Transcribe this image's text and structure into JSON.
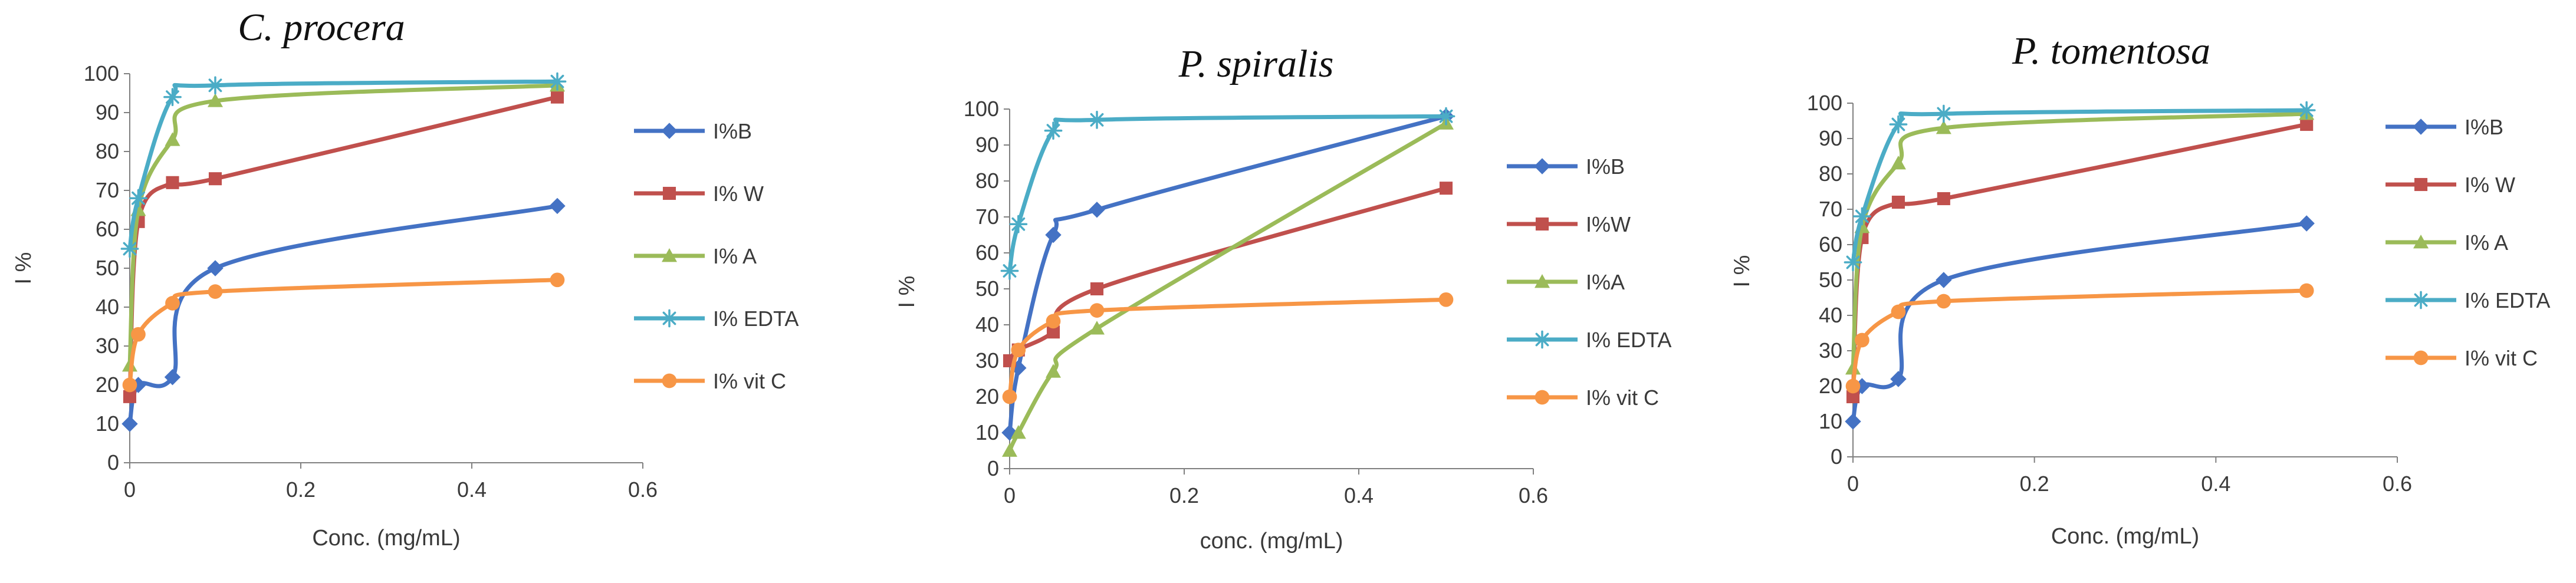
{
  "chart_data": [
    {
      "type": "line",
      "title": "C. procera",
      "xlabel": "Conc. (mg/mL)",
      "ylabel": "I %",
      "xlim": [
        0,
        0.6
      ],
      "ylim": [
        0,
        100
      ],
      "xticks": [
        0,
        0.2,
        0.4,
        0.6
      ],
      "xtick_labels": [
        "0",
        "0.2",
        "0.4",
        "0.6"
      ],
      "yticks": [
        0,
        10,
        20,
        30,
        40,
        50,
        60,
        70,
        80,
        90,
        100
      ],
      "ytick_labels": [
        "0",
        "10",
        "20",
        "30",
        "40",
        "50",
        "60",
        "70",
        "80",
        "90",
        "100"
      ],
      "legend_position": "right",
      "series": [
        {
          "name": "I%B",
          "marker": "diamond",
          "color": "#4472c4",
          "x": [
            0,
            0.01,
            0.05,
            0.1,
            0.5
          ],
          "y": [
            10,
            20,
            22,
            50,
            66
          ]
        },
        {
          "name": "I% W",
          "marker": "square",
          "color": "#c0504d",
          "x": [
            0,
            0.01,
            0.05,
            0.1,
            0.5
          ],
          "y": [
            17,
            62,
            72,
            73,
            94
          ]
        },
        {
          "name": "I% A",
          "marker": "triangle",
          "color": "#9bbb59",
          "x": [
            0,
            0.01,
            0.05,
            0.1,
            0.5
          ],
          "y": [
            25,
            65,
            83,
            93,
            97
          ]
        },
        {
          "name": "I% EDTA",
          "marker": "asterisk",
          "color": "#4bacc6",
          "x": [
            0,
            0.01,
            0.05,
            0.1,
            0.5
          ],
          "y": [
            55,
            68,
            94,
            97,
            98
          ]
        },
        {
          "name": "I% vit C",
          "marker": "circle",
          "color": "#f79646",
          "x": [
            0,
            0.01,
            0.05,
            0.1,
            0.5
          ],
          "y": [
            20,
            33,
            41,
            44,
            47
          ]
        }
      ]
    },
    {
      "type": "line",
      "title": "P. spiralis",
      "xlabel": "conc. (mg/mL)",
      "ylabel": "I %",
      "xlim": [
        0,
        0.6
      ],
      "ylim": [
        0,
        100
      ],
      "xticks": [
        0,
        0.2,
        0.4,
        0.6
      ],
      "xtick_labels": [
        "0",
        "0.2",
        "0.4",
        "0.6"
      ],
      "yticks": [
        0,
        10,
        20,
        30,
        40,
        50,
        60,
        70,
        80,
        90,
        100
      ],
      "ytick_labels": [
        "0",
        "10",
        "20",
        "30",
        "40",
        "50",
        "60",
        "70",
        "80",
        "90",
        "100"
      ],
      "legend_position": "right",
      "series": [
        {
          "name": "I%B",
          "marker": "diamond",
          "color": "#4472c4",
          "x": [
            0,
            0.01,
            0.05,
            0.1,
            0.5
          ],
          "y": [
            10,
            28,
            65,
            72,
            98
          ]
        },
        {
          "name": "I%W",
          "marker": "square",
          "color": "#c0504d",
          "x": [
            0,
            0.01,
            0.05,
            0.1,
            0.5
          ],
          "y": [
            30,
            33,
            38,
            50,
            78
          ]
        },
        {
          "name": "I%A",
          "marker": "triangle",
          "color": "#9bbb59",
          "x": [
            0,
            0.01,
            0.05,
            0.1,
            0.5
          ],
          "y": [
            5,
            10,
            27,
            39,
            96
          ]
        },
        {
          "name": "I% EDTA",
          "marker": "asterisk",
          "color": "#4bacc6",
          "x": [
            0,
            0.01,
            0.05,
            0.1,
            0.5
          ],
          "y": [
            55,
            68,
            94,
            97,
            98
          ]
        },
        {
          "name": "I% vit C",
          "marker": "circle",
          "color": "#f79646",
          "x": [
            0,
            0.01,
            0.05,
            0.1,
            0.5
          ],
          "y": [
            20,
            33,
            41,
            44,
            47
          ]
        }
      ]
    },
    {
      "type": "line",
      "title": "P. tomentosa",
      "xlabel": "Conc. (mg/mL)",
      "ylabel": "I %",
      "xlim": [
        0,
        0.6
      ],
      "ylim": [
        0,
        100
      ],
      "xticks": [
        0,
        0.2,
        0.4,
        0.6
      ],
      "xtick_labels": [
        "0",
        "0.2",
        "0.4",
        "0.6"
      ],
      "yticks": [
        0,
        10,
        20,
        30,
        40,
        50,
        60,
        70,
        80,
        90,
        100
      ],
      "ytick_labels": [
        "0",
        "10",
        "20",
        "30",
        "40",
        "50",
        "60",
        "70",
        "80",
        "90",
        "100"
      ],
      "legend_position": "right",
      "series": [
        {
          "name": "I%B",
          "marker": "diamond",
          "color": "#4472c4",
          "x": [
            0,
            0.01,
            0.05,
            0.1,
            0.5
          ],
          "y": [
            10,
            20,
            22,
            50,
            66
          ]
        },
        {
          "name": "I% W",
          "marker": "square",
          "color": "#c0504d",
          "x": [
            0,
            0.01,
            0.05,
            0.1,
            0.5
          ],
          "y": [
            17,
            62,
            72,
            73,
            94
          ]
        },
        {
          "name": "I% A",
          "marker": "triangle",
          "color": "#9bbb59",
          "x": [
            0,
            0.01,
            0.05,
            0.1,
            0.5
          ],
          "y": [
            25,
            65,
            83,
            93,
            97
          ]
        },
        {
          "name": "I% EDTA",
          "marker": "asterisk",
          "color": "#4bacc6",
          "x": [
            0,
            0.01,
            0.05,
            0.1,
            0.5
          ],
          "y": [
            55,
            68,
            94,
            97,
            98
          ]
        },
        {
          "name": "I% vit C",
          "marker": "circle",
          "color": "#f79646",
          "x": [
            0,
            0.01,
            0.05,
            0.1,
            0.5
          ],
          "y": [
            20,
            33,
            41,
            44,
            47
          ]
        }
      ]
    }
  ]
}
